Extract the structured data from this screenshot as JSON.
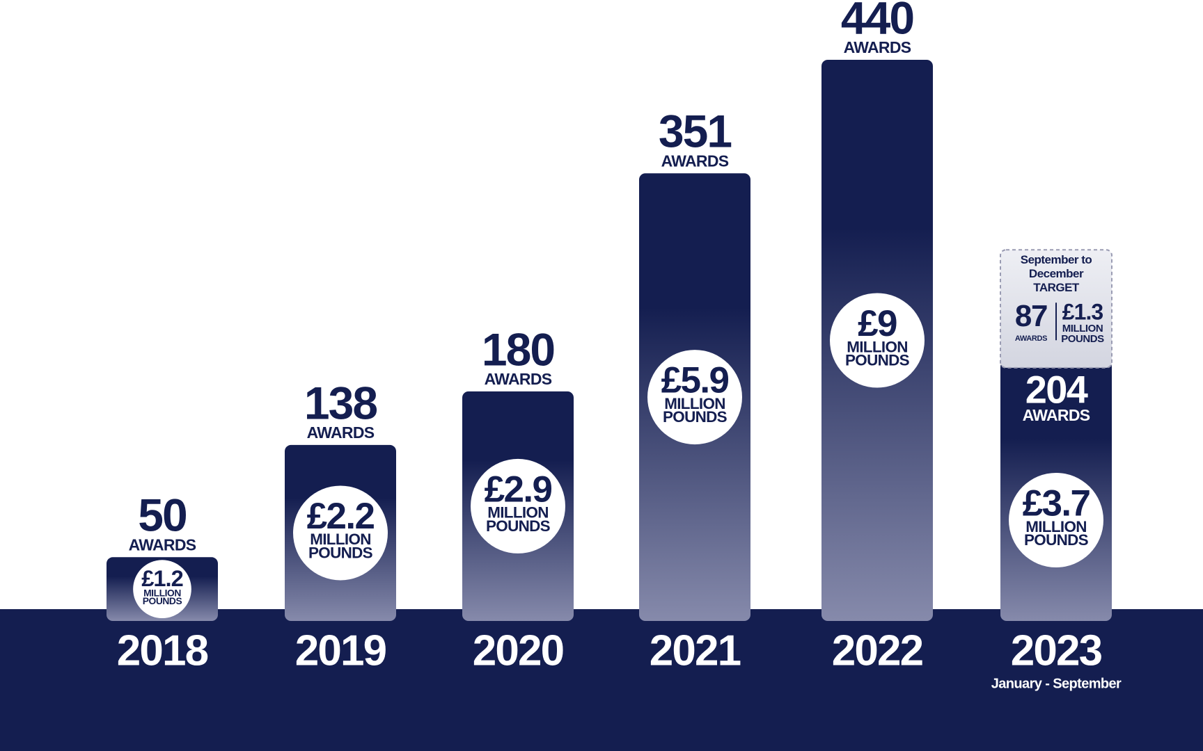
{
  "chart_data": {
    "type": "bar",
    "categories": [
      "2018",
      "2019",
      "2020",
      "2021",
      "2022",
      "2023"
    ],
    "values": [
      50,
      138,
      180,
      351,
      440,
      204
    ],
    "value_unit": "AWARDS",
    "amounts": [
      "£1.2",
      "£2.2",
      "£2.9",
      "£5.9",
      "£9",
      "£3.7"
    ],
    "amount_unit": [
      "MILLION",
      "POUNDS"
    ],
    "period_note": "January - September",
    "target": {
      "title": [
        "September to",
        "December",
        "TARGET"
      ],
      "value": 87,
      "amount": "£1.3"
    },
    "color": "#141e50",
    "gradient_color": "#868aab"
  }
}
